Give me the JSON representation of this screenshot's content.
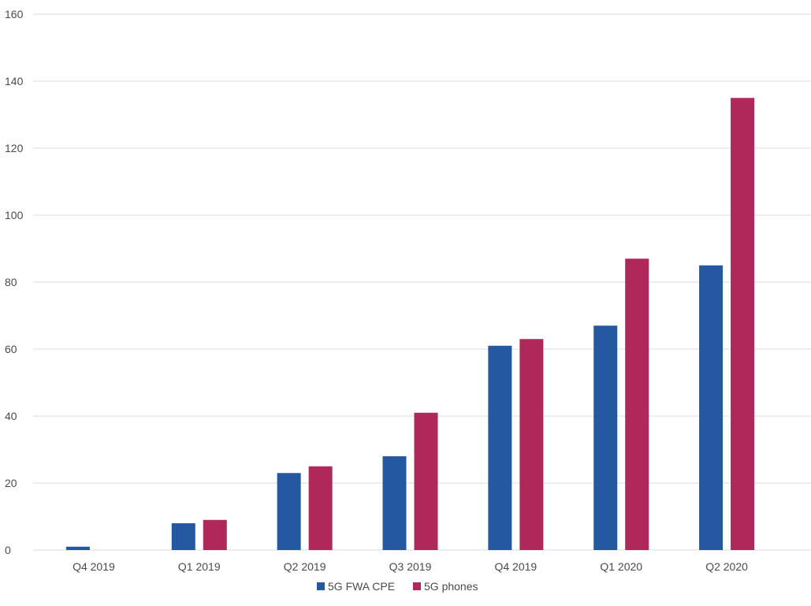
{
  "chart_data": {
    "type": "bar",
    "categories": [
      "Q4 2019",
      "Q1 2019",
      "Q2 2019",
      "Q3 2019",
      "Q4 2019",
      "Q1 2020",
      "Q2 2020"
    ],
    "series": [
      {
        "name": "5G FWA CPE",
        "color": "#2458a0",
        "values": [
          1,
          8,
          23,
          28,
          61,
          67,
          85
        ]
      },
      {
        "name": "5G phones",
        "color": "#b0285a",
        "values": [
          0,
          9,
          25,
          41,
          63,
          87,
          135
        ]
      }
    ],
    "ylim": [
      0,
      160
    ],
    "yticks": [
      0,
      20,
      40,
      60,
      80,
      100,
      120,
      140,
      160
    ],
    "grid": true,
    "legend_position": "bottom-center",
    "title": "",
    "xlabel": "",
    "ylabel": ""
  }
}
